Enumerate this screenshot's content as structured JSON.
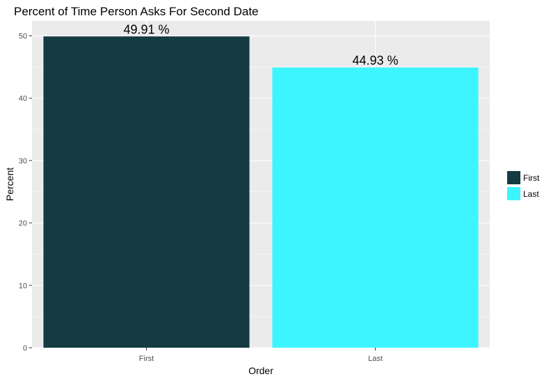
{
  "chart_data": {
    "type": "bar",
    "title": "Percent of Time Person Asks For Second Date",
    "xlabel": "Order",
    "ylabel": "Percent",
    "categories": [
      "First",
      "Last"
    ],
    "values": [
      49.91,
      44.93
    ],
    "data_labels": [
      "49.91 %",
      "44.93 %"
    ],
    "colors": [
      "#143B41",
      "#3DF5FF"
    ],
    "ylim": [
      0,
      52.4
    ],
    "yticks": [
      0,
      10,
      20,
      30,
      40,
      50
    ],
    "grid": true,
    "legend": {
      "placement": "right",
      "entries": [
        "First",
        "Last"
      ]
    },
    "panel_background": "#EBEBEB"
  }
}
